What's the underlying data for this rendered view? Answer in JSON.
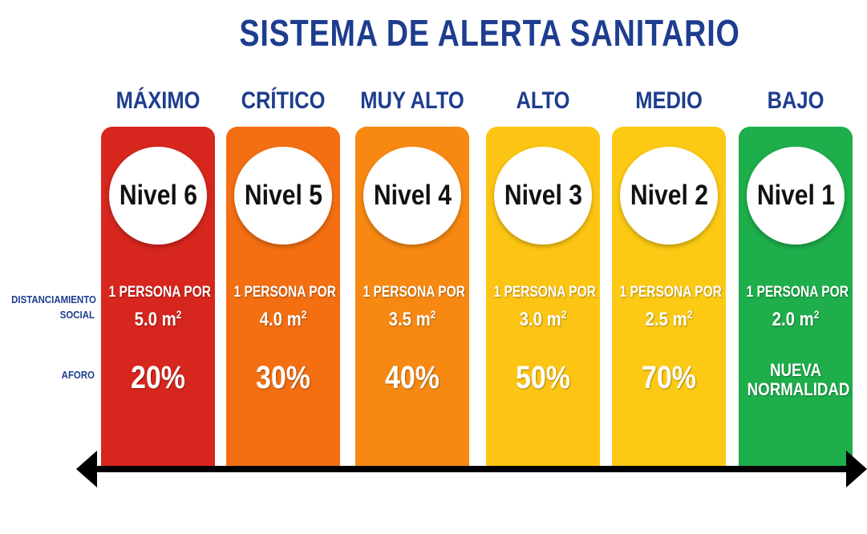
{
  "title": "SISTEMA DE ALERTA SANITARIO",
  "row_labels": {
    "distanciamiento": "DISTANCIAMIENTO SOCIAL",
    "aforo": "AFORO"
  },
  "colors": {
    "title": "#1e3d8f",
    "maximo": "#d7261d",
    "critico": "#f36f12",
    "muy_alto": "#f78913",
    "alto": "#fdc513",
    "medio": "#fcca14",
    "bajo": "#1eae4b",
    "arrow": "#000000"
  },
  "levels": [
    {
      "name": "MÁXIMO",
      "nivel": "Nivel 6",
      "dist_line1": "1 PERSONA POR",
      "dist_value": "5.0 m",
      "dist_unit": "2",
      "aforo": "20%",
      "color": "#d7261d"
    },
    {
      "name": "CRÍTICO",
      "nivel": "Nivel 5",
      "dist_line1": "1 PERSONA POR",
      "dist_value": "4.0 m",
      "dist_unit": "2",
      "aforo": "30%",
      "color": "#f36f12"
    },
    {
      "name": "MUY ALTO",
      "nivel": "Nivel 4",
      "dist_line1": "1 PERSONA POR",
      "dist_value": "3.5 m",
      "dist_unit": "2",
      "aforo": "40%",
      "color": "#f78913"
    },
    {
      "name": "ALTO",
      "nivel": "Nivel 3",
      "dist_line1": "1 PERSONA POR",
      "dist_value": "3.0 m",
      "dist_unit": "2",
      "aforo": "50%",
      "color": "#fdc513"
    },
    {
      "name": "MEDIO",
      "nivel": "Nivel 2",
      "dist_line1": "1 PERSONA POR",
      "dist_value": "2.5 m",
      "dist_unit": "2",
      "aforo": "70%",
      "color": "#fcca14"
    },
    {
      "name": "BAJO",
      "nivel": "Nivel 1",
      "dist_line1": "1 PERSONA POR",
      "dist_value": "2.0 m",
      "dist_unit": "2",
      "aforo_line1": "NUEVA",
      "aforo_line2": "NORMALIDAD",
      "color": "#1eae4b"
    }
  ]
}
